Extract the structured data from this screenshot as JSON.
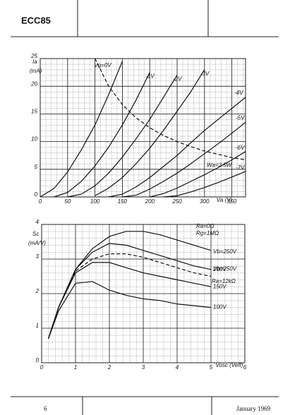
{
  "header": {
    "title": "ECC85"
  },
  "footer": {
    "page": "6",
    "date": "January 1969"
  },
  "chart_data": [
    {
      "type": "line",
      "ylabel": [
        "Ia",
        "(mA)"
      ],
      "xlabel": "Va (V)",
      "xlim": [
        0,
        375
      ],
      "ylim": [
        0,
        25
      ],
      "xticks": [
        0,
        50,
        100,
        150,
        200,
        250,
        300,
        350
      ],
      "yticks": [
        0,
        5,
        10,
        15,
        20,
        25
      ],
      "grid": true,
      "x": [
        0,
        25,
        50,
        75,
        100,
        125,
        150,
        175,
        200,
        225,
        250,
        275,
        300,
        325,
        350,
        375
      ],
      "series": [
        {
          "name": "Vg=0V",
          "color": "#111",
          "style": "solid",
          "values": [
            0,
            1.5,
            4.5,
            8.5,
            13,
            18.5,
            24.5,
            null,
            null,
            null,
            null,
            null,
            null,
            null,
            null,
            null
          ]
        },
        {
          "name": "-1V",
          "color": "#111",
          "style": "solid",
          "values": [
            null,
            0,
            0.8,
            2.8,
            5.6,
            9,
            13,
            17.5,
            22.5,
            null,
            null,
            null,
            null,
            null,
            null,
            null
          ]
        },
        {
          "name": "-2V",
          "color": "#111",
          "style": "solid",
          "values": [
            null,
            null,
            0,
            0.5,
            2,
            4.3,
            7.2,
            10.5,
            14,
            18,
            22,
            null,
            null,
            null,
            null,
            null
          ]
        },
        {
          "name": "-3V",
          "color": "#111",
          "style": "solid",
          "values": [
            null,
            null,
            null,
            null,
            0.2,
            1.6,
            3.5,
            6,
            8.8,
            12,
            15.5,
            19,
            23,
            null,
            null,
            null
          ]
        },
        {
          "name": "-4V",
          "color": "#111",
          "style": "solid",
          "values": [
            null,
            null,
            null,
            null,
            null,
            0,
            0.5,
            1.8,
            3.5,
            5.5,
            7.5,
            9.8,
            12,
            14,
            16,
            18
          ]
        },
        {
          "name": "-5V",
          "color": "#111",
          "style": "solid",
          "values": [
            null,
            null,
            null,
            null,
            null,
            null,
            0,
            0.3,
            1.4,
            2.8,
            4.3,
            6,
            7.8,
            9.6,
            11.5,
            13.5
          ]
        },
        {
          "name": "-6V",
          "color": "#111",
          "style": "solid",
          "values": [
            null,
            null,
            null,
            null,
            null,
            null,
            null,
            null,
            0,
            0.6,
            1.6,
            2.8,
            4,
            5.3,
            6.7,
            8.2
          ]
        },
        {
          "name": "-7V",
          "color": "#111",
          "style": "solid",
          "values": [
            null,
            null,
            null,
            null,
            null,
            null,
            null,
            null,
            null,
            0,
            0.2,
            0.9,
            1.7,
            2.6,
            3.6,
            4.6
          ]
        },
        {
          "name": "Wa=2.5W",
          "color": "#111",
          "style": "dashed",
          "values": [
            null,
            null,
            null,
            null,
            25,
            20,
            16.7,
            14.3,
            12.5,
            11.1,
            10,
            9.1,
            8.3,
            7.7,
            7.1,
            6.7
          ]
        }
      ]
    },
    {
      "type": "line",
      "ylabel": [
        "Sc",
        "(mA/V)"
      ],
      "xlabel": "Vosc (Veff)",
      "annotations": [
        "Ra=0Ω",
        "Rg=1MΩ",
        "Ra=12kΩ"
      ],
      "xlim": [
        0,
        6
      ],
      "ylim": [
        0,
        4
      ],
      "xticks": [
        0,
        1,
        2,
        3,
        4,
        5,
        6
      ],
      "yticks": [
        0,
        1,
        2,
        3,
        4
      ],
      "grid": true,
      "x": [
        0.2,
        0.5,
        1,
        1.5,
        2,
        2.5,
        3,
        3.5,
        4,
        4.5,
        5
      ],
      "series": [
        {
          "name": "Vb=250V",
          "color": "#111",
          "style": "solid",
          "values": [
            0.7,
            1.6,
            2.7,
            3.3,
            3.65,
            3.8,
            3.8,
            3.7,
            3.55,
            3.4,
            3.25
          ]
        },
        {
          "name": "200V",
          "color": "#111",
          "style": "solid",
          "values": [
            0.7,
            1.6,
            2.7,
            3.2,
            3.45,
            3.4,
            3.25,
            3.1,
            2.95,
            2.8,
            2.7
          ]
        },
        {
          "name": "Vb=250V",
          "color": "#111",
          "style": "dashed",
          "values": [
            0.7,
            1.6,
            2.65,
            3.0,
            3.15,
            3.15,
            3.05,
            2.9,
            2.75,
            2.6,
            2.5
          ]
        },
        {
          "name": "150V",
          "color": "#111",
          "style": "solid",
          "values": [
            0.7,
            1.6,
            2.6,
            2.9,
            2.9,
            2.75,
            2.6,
            2.5,
            2.4,
            2.3,
            2.2
          ]
        },
        {
          "name": "100V",
          "color": "#111",
          "style": "solid",
          "values": [
            0.7,
            1.5,
            2.3,
            2.35,
            2.1,
            1.95,
            1.85,
            1.8,
            1.7,
            1.65,
            1.6
          ]
        }
      ]
    }
  ]
}
